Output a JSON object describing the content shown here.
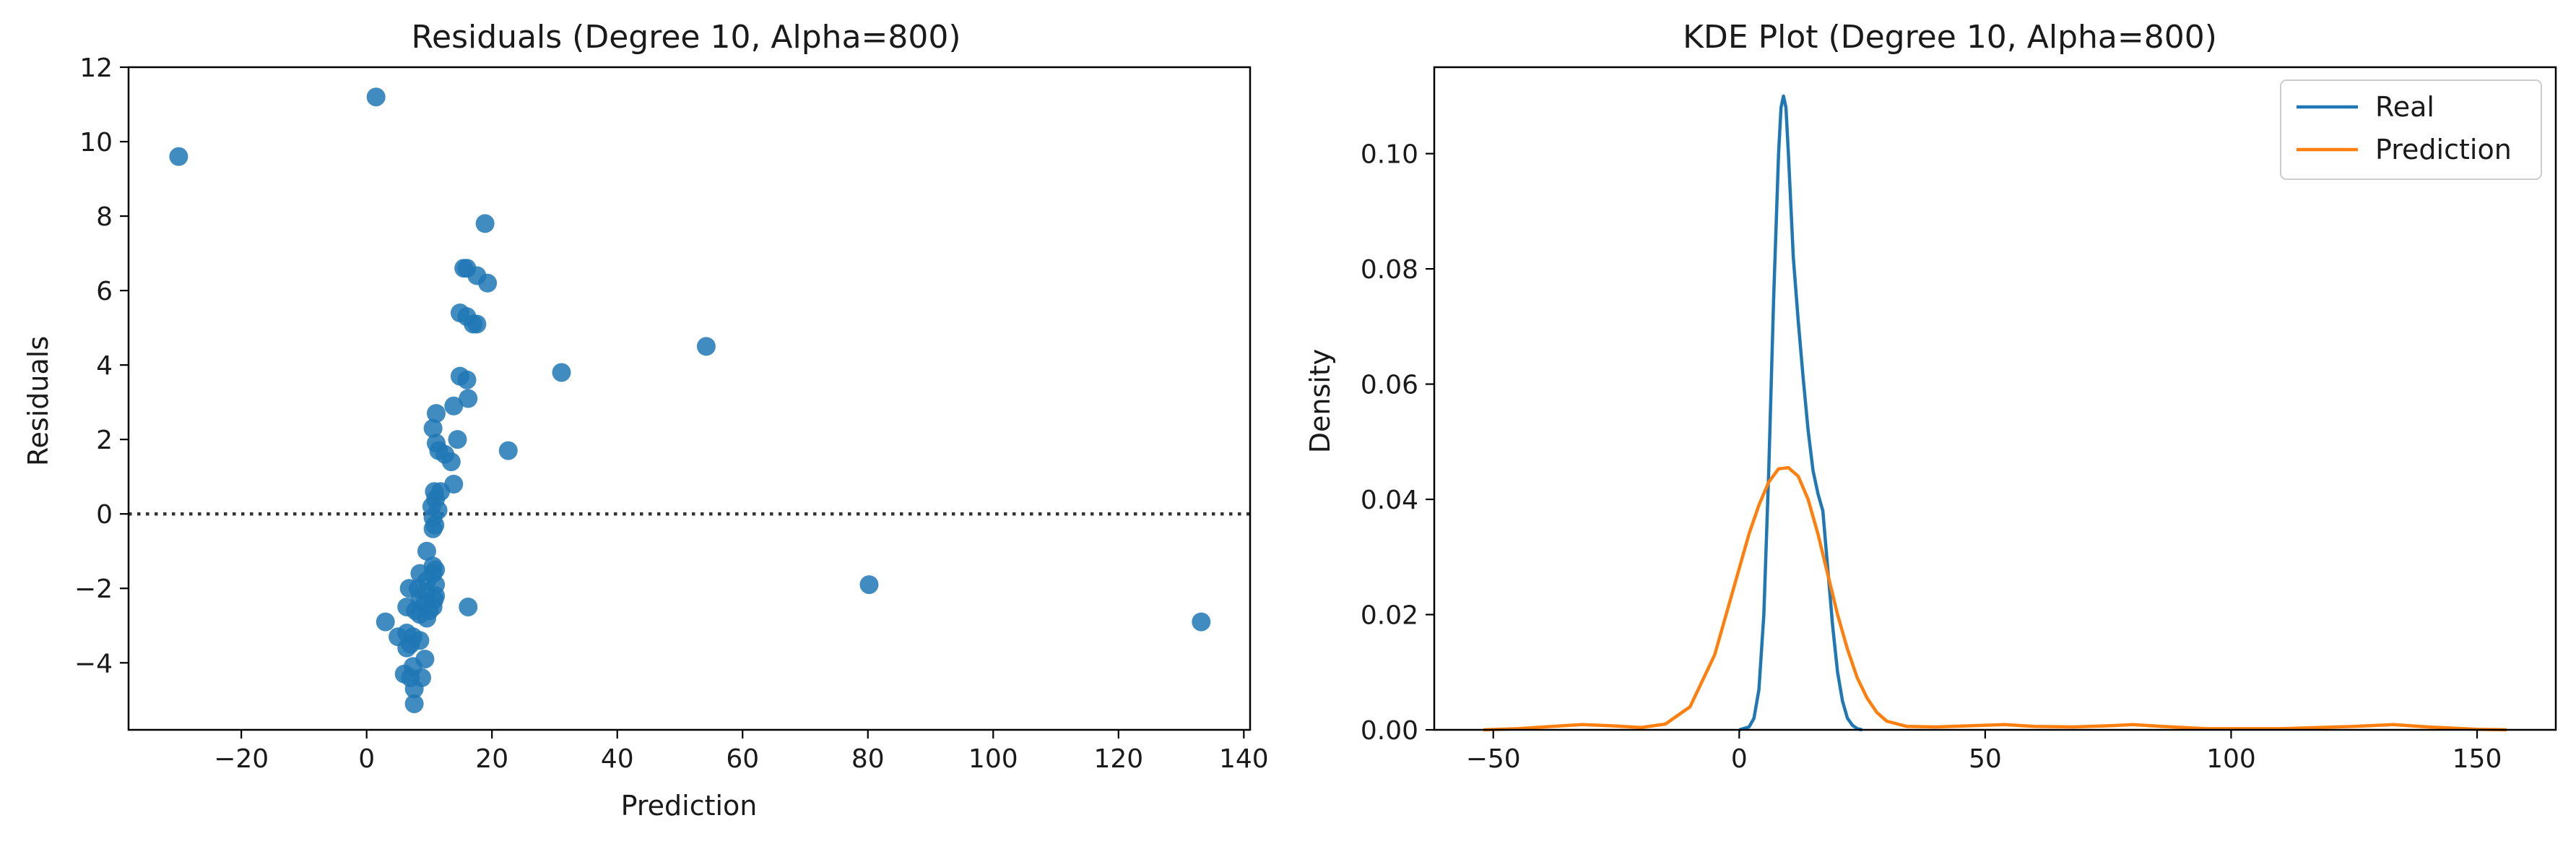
{
  "chart_data": [
    {
      "type": "scatter",
      "title": "Residuals (Degree 10, Alpha=800)",
      "xlabel": "Prediction",
      "ylabel": "Residuals",
      "xlim": [
        -38,
        141
      ],
      "ylim": [
        -5.8,
        12
      ],
      "xticks": [
        -20,
        0,
        20,
        40,
        60,
        80,
        100,
        120,
        140
      ],
      "yticks": [
        -4,
        -2,
        0,
        2,
        4,
        6,
        8,
        10,
        12
      ],
      "reference_line": {
        "y": 0,
        "style": "dotted"
      },
      "color": "#1f77b4",
      "points": [
        [
          -30,
          9.6
        ],
        [
          1.5,
          11.2
        ],
        [
          18.9,
          7.8
        ],
        [
          15.5,
          6.6
        ],
        [
          16,
          6.6
        ],
        [
          17.6,
          6.4
        ],
        [
          19.3,
          6.2
        ],
        [
          14.9,
          5.4
        ],
        [
          16,
          5.3
        ],
        [
          17,
          5.1
        ],
        [
          17.6,
          5.1
        ],
        [
          31.1,
          3.8
        ],
        [
          54.2,
          4.5
        ],
        [
          14.9,
          3.7
        ],
        [
          16,
          3.6
        ],
        [
          13.9,
          2.9
        ],
        [
          16.2,
          3.1
        ],
        [
          11.1,
          2.7
        ],
        [
          10.6,
          2.3
        ],
        [
          14.5,
          2.0
        ],
        [
          11.1,
          1.9
        ],
        [
          11.5,
          1.7
        ],
        [
          12.5,
          1.6
        ],
        [
          13.5,
          1.4
        ],
        [
          22.6,
          1.7
        ],
        [
          13.9,
          0.8
        ],
        [
          10.8,
          0.6
        ],
        [
          11.8,
          0.6
        ],
        [
          11,
          0.4
        ],
        [
          10.4,
          0.2
        ],
        [
          11.4,
          0.1
        ],
        [
          10.6,
          -0.1
        ],
        [
          10.9,
          -0.3
        ],
        [
          10.6,
          -0.4
        ],
        [
          9.6,
          -1.0
        ],
        [
          10.6,
          -1.4
        ],
        [
          11,
          -1.5
        ],
        [
          8.5,
          -1.6
        ],
        [
          10.6,
          -1.6
        ],
        [
          9.6,
          -1.8
        ],
        [
          11,
          -1.9
        ],
        [
          6.8,
          -2.0
        ],
        [
          8.2,
          -2.0
        ],
        [
          9.6,
          -2.1
        ],
        [
          11,
          -2.2
        ],
        [
          8.5,
          -2.3
        ],
        [
          10.8,
          -2.3
        ],
        [
          9.3,
          -2.4
        ],
        [
          10.6,
          -2.5
        ],
        [
          6.4,
          -2.5
        ],
        [
          7.8,
          -2.6
        ],
        [
          16.2,
          -2.5
        ],
        [
          10,
          -2.6
        ],
        [
          8.5,
          -2.7
        ],
        [
          9.6,
          -2.8
        ],
        [
          3,
          -2.9
        ],
        [
          80.2,
          -1.9
        ],
        [
          133.2,
          -2.9
        ],
        [
          5,
          -3.3
        ],
        [
          6.4,
          -3.2
        ],
        [
          7.4,
          -3.3
        ],
        [
          8.5,
          -3.4
        ],
        [
          7,
          -3.5
        ],
        [
          6.4,
          -3.6
        ],
        [
          9.3,
          -3.9
        ],
        [
          7.4,
          -4.1
        ],
        [
          6,
          -4.3
        ],
        [
          7,
          -4.4
        ],
        [
          8.8,
          -4.4
        ],
        [
          7.6,
          -4.7
        ],
        [
          7.6,
          -5.1
        ]
      ]
    },
    {
      "type": "line",
      "title": "KDE Plot (Degree 10, Alpha=800)",
      "xlabel": "",
      "ylabel": "Density",
      "xlim": [
        -62,
        166
      ],
      "ylim": [
        0,
        0.115
      ],
      "xticks": [
        -50,
        0,
        50,
        100,
        150
      ],
      "yticks": [
        0.0,
        0.02,
        0.04,
        0.06,
        0.08,
        0.1
      ],
      "legend": "top-right",
      "series": [
        {
          "name": "Real",
          "color": "#1f77b4",
          "points": [
            [
              0,
              0
            ],
            [
              2,
              0.0005
            ],
            [
              3,
              0.002
            ],
            [
              4,
              0.007
            ],
            [
              5,
              0.02
            ],
            [
              6,
              0.045
            ],
            [
              7,
              0.075
            ],
            [
              8,
              0.1
            ],
            [
              8.5,
              0.108
            ],
            [
              9,
              0.11
            ],
            [
              9.5,
              0.108
            ],
            [
              10,
              0.1
            ],
            [
              11,
              0.082
            ],
            [
              12,
              0.071
            ],
            [
              13,
              0.061
            ],
            [
              14,
              0.052
            ],
            [
              15,
              0.045
            ],
            [
              16,
              0.041
            ],
            [
              17,
              0.038
            ],
            [
              18,
              0.028
            ],
            [
              19,
              0.018
            ],
            [
              20,
              0.01
            ],
            [
              21,
              0.005
            ],
            [
              22,
              0.002
            ],
            [
              23,
              0.0008
            ],
            [
              24,
              0.0002
            ],
            [
              25,
              0
            ]
          ]
        },
        {
          "name": "Prediction",
          "color": "#ff7f0e",
          "points": [
            [
              -52,
              0
            ],
            [
              -45,
              0.0002
            ],
            [
              -38,
              0.0006
            ],
            [
              -32,
              0.0009
            ],
            [
              -26,
              0.0007
            ],
            [
              -20,
              0.0004
            ],
            [
              -15,
              0.001
            ],
            [
              -10,
              0.004
            ],
            [
              -5,
              0.013
            ],
            [
              -2,
              0.022
            ],
            [
              0,
              0.028
            ],
            [
              2,
              0.034
            ],
            [
              4,
              0.039
            ],
            [
              6,
              0.043
            ],
            [
              8,
              0.0453
            ],
            [
              10,
              0.0455
            ],
            [
              12,
              0.044
            ],
            [
              14,
              0.04
            ],
            [
              16,
              0.034
            ],
            [
              18,
              0.027
            ],
            [
              20,
              0.02
            ],
            [
              22,
              0.014
            ],
            [
              24,
              0.009
            ],
            [
              26,
              0.0055
            ],
            [
              28,
              0.003
            ],
            [
              30,
              0.0015
            ],
            [
              34,
              0.0006
            ],
            [
              40,
              0.0005
            ],
            [
              47,
              0.0007
            ],
            [
              54,
              0.0009
            ],
            [
              60,
              0.0006
            ],
            [
              68,
              0.0005
            ],
            [
              75,
              0.0007
            ],
            [
              80,
              0.0009
            ],
            [
              86,
              0.0006
            ],
            [
              95,
              0.0002
            ],
            [
              110,
              0.0002
            ],
            [
              125,
              0.0006
            ],
            [
              133,
              0.0009
            ],
            [
              140,
              0.0005
            ],
            [
              150,
              0.0001
            ],
            [
              156,
              0
            ]
          ]
        }
      ]
    }
  ]
}
